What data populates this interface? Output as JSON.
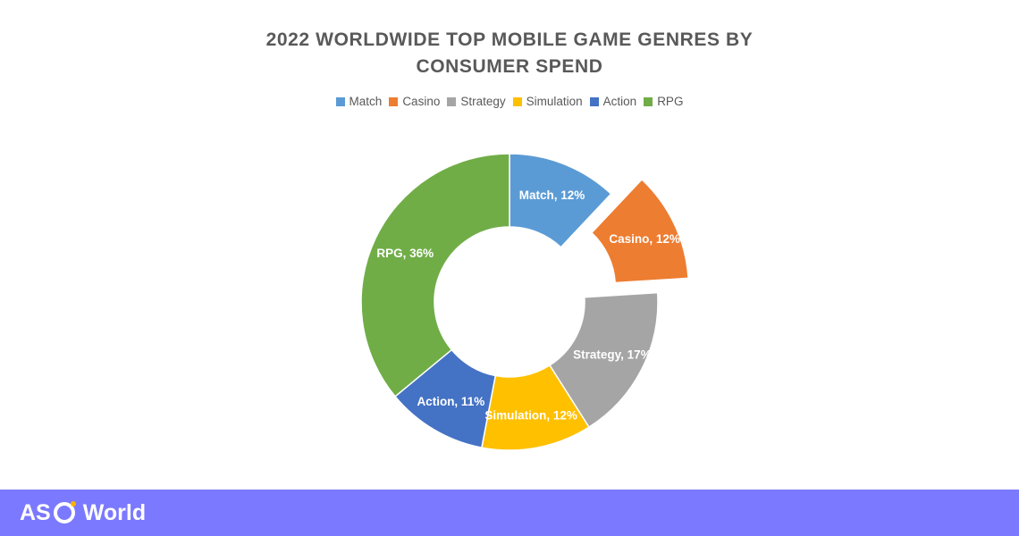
{
  "chart_data": {
    "type": "donut",
    "title": "2022 WORLDWIDE TOP MOBILE GAME GENRES BY CONSUMER SPEND",
    "title_lines": [
      "2022 WORLDWIDE TOP MOBILE GAME GENRES BY",
      "CONSUMER SPEND"
    ],
    "legend_position": "top",
    "exploded": "Casino",
    "series": [
      {
        "name": "Match",
        "value": 12,
        "label": "Match, 12%",
        "color": "#5b9bd5"
      },
      {
        "name": "Casino",
        "value": 12,
        "label": "Casino, 12%",
        "color": "#ed7d31"
      },
      {
        "name": "Strategy",
        "value": 17,
        "label": "Strategy, 17%",
        "color": "#a5a5a5"
      },
      {
        "name": "Simulation",
        "value": 12,
        "label": "Simulation, 12%",
        "color": "#ffc000"
      },
      {
        "name": "Action",
        "value": 11,
        "label": "Action, 11%",
        "color": "#4472c4"
      },
      {
        "name": "RPG",
        "value": 36,
        "label": "RPG, 36%",
        "color": "#70ad47"
      }
    ]
  },
  "footer": {
    "brand_left": "AS",
    "brand_right": "World",
    "background": "#7b79ff"
  }
}
